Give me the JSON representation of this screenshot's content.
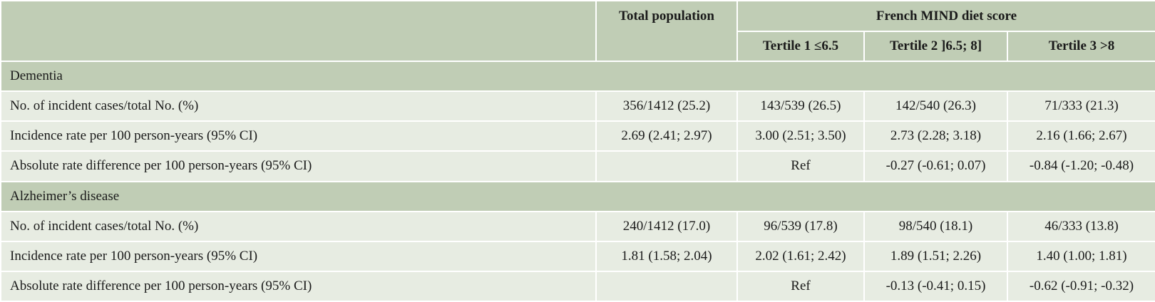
{
  "table": {
    "header": {
      "total": "Total population",
      "group": "French MIND diet score",
      "tertiles": [
        "Tertile 1 ≤6.5",
        "Tertile 2 ]6.5; 8]",
        "Tertile 3 >8"
      ]
    },
    "sections": [
      {
        "title": "Dementia",
        "rows": [
          {
            "label": "No. of incident cases/total No. (%)",
            "total": "356/1412 (25.2)",
            "values": [
              "143/539 (26.5)",
              "142/540 (26.3)",
              "71/333 (21.3)"
            ]
          },
          {
            "label": "Incidence rate per 100 person-years (95% CI)",
            "total": "2.69 (2.41; 2.97)",
            "values": [
              "3.00 (2.51; 3.50)",
              "2.73 (2.28; 3.18)",
              "2.16 (1.66; 2.67)"
            ]
          },
          {
            "label": "Absolute rate difference per 100 person-years (95% CI)",
            "values": [
              "Ref",
              "-0.27 (-0.61; 0.07)",
              "-0.84 (-1.20; -0.48)"
            ]
          }
        ]
      },
      {
        "title": "Alzheimer’s disease",
        "rows": [
          {
            "label": "No. of incident cases/total No. (%)",
            "total": "240/1412 (17.0)",
            "values": [
              "96/539 (17.8)",
              "98/540 (18.1)",
              "46/333 (13.8)"
            ]
          },
          {
            "label": "Incidence rate per 100 person-years (95% CI)",
            "total": "1.81 (1.58; 2.04)",
            "values": [
              "2.02 (1.61; 2.42)",
              "1.89 (1.51; 2.26)",
              "1.40 (1.00; 1.81)"
            ]
          },
          {
            "label": "Absolute rate difference per 100 person-years (95% CI)",
            "values": [
              "Ref",
              "-0.13 (-0.41; 0.15)",
              "-0.62 (-0.91; -0.32)"
            ]
          }
        ]
      }
    ]
  }
}
